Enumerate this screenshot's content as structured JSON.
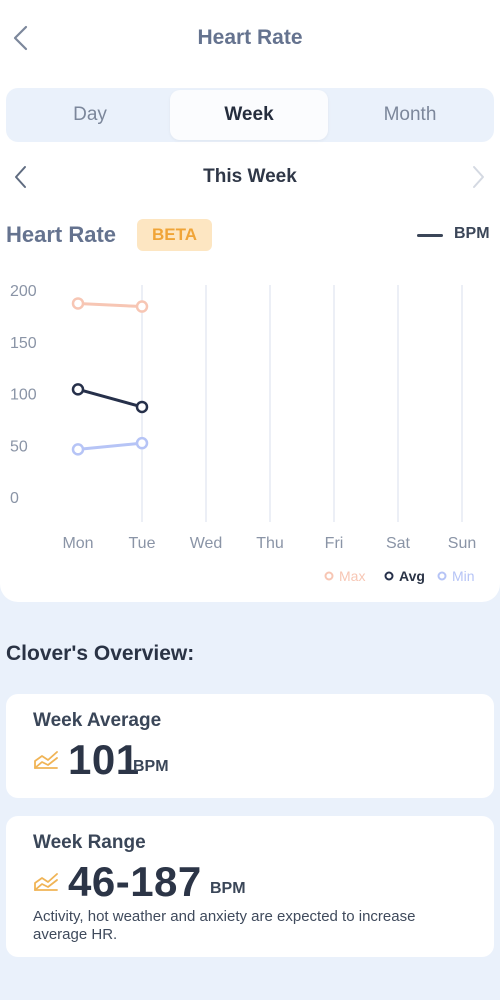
{
  "header": {
    "title": "Heart Rate",
    "back_icon": "chevron-left-icon"
  },
  "tabs": [
    {
      "label": "Day",
      "active": false
    },
    {
      "label": "Week",
      "active": true
    },
    {
      "label": "Month",
      "active": false
    }
  ],
  "week_nav": {
    "label": "This Week",
    "prev_icon": "chevron-left-icon",
    "next_icon": "chevron-right-icon"
  },
  "section": {
    "title": "Heart Rate",
    "badge": "BETA",
    "unit_label": "BPM"
  },
  "chart_data": {
    "type": "line",
    "categories": [
      "Mon",
      "Tue",
      "Wed",
      "Thu",
      "Fri",
      "Sat",
      "Sun"
    ],
    "ylim": [
      0,
      200
    ],
    "yticks": [
      "200",
      "150",
      "100",
      "50",
      "0"
    ],
    "ytick_values": [
      200,
      150,
      100,
      50,
      0
    ],
    "title": "",
    "xlabel": "",
    "ylabel": "",
    "grid": "vertical",
    "legend_position": "bottom-right",
    "series": [
      {
        "name": "Max",
        "color": "#f7c6b4",
        "values": [
          187,
          184,
          null,
          null,
          null,
          null,
          null
        ]
      },
      {
        "name": "Avg",
        "color": "#26304a",
        "values": [
          104,
          87,
          null,
          null,
          null,
          null,
          null
        ]
      },
      {
        "name": "Min",
        "color": "#b6c4f6",
        "values": [
          46,
          52,
          null,
          null,
          null,
          null,
          null
        ]
      }
    ]
  },
  "overview": {
    "title": "Clover's Overview:",
    "average": {
      "title": "Week Average",
      "value": "101",
      "unit": "BPM",
      "icon": "trend-chart-icon"
    },
    "range": {
      "title": "Week Range",
      "value": "46-187",
      "unit": "BPM",
      "icon": "trend-chart-icon",
      "note": "Activity, hot weather and anxiety are expected to increase average HR."
    }
  },
  "colors": {
    "accent_orange": "#f0a437",
    "badge_bg": "#fde6c2",
    "page_bg": "#eaf1fb"
  }
}
